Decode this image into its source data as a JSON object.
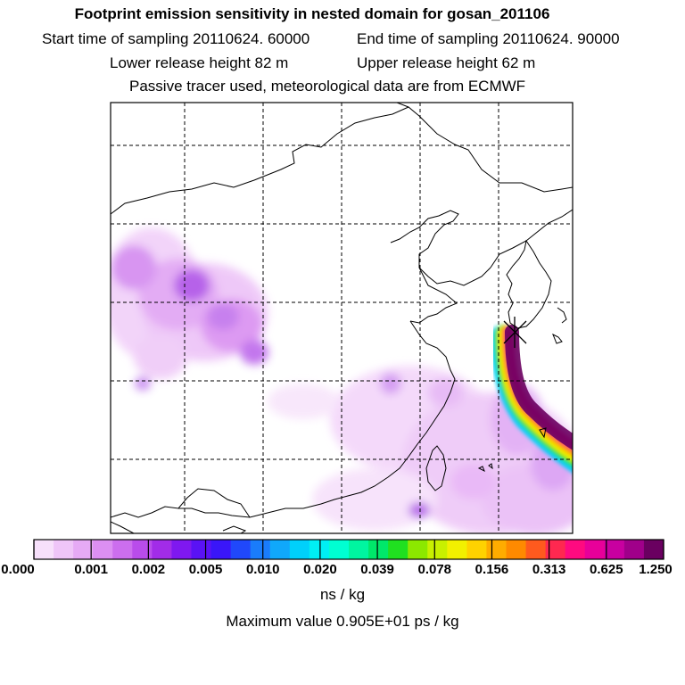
{
  "header": {
    "title": "Footprint emission sensitivity in nested domain for gosan_201106",
    "start_sampling": "Start time of sampling 20110624. 60000",
    "end_sampling": "End time of sampling 20110624. 90000",
    "lower_release": "Lower release height   82 m",
    "upper_release": "Upper release height   62 m",
    "tracer_note": "Passive tracer used, meteorological data are from ECMWF"
  },
  "colorbar": {
    "colors": [
      "#f7e0fb",
      "#efc5f8",
      "#e6aaf5",
      "#dc8ff2",
      "#cc6eee",
      "#b94ceb",
      "#a22ce8",
      "#7f18f0",
      "#5a12f5",
      "#3a16f9",
      "#2048fb",
      "#1a7cfb",
      "#10a8fb",
      "#00d0fb",
      "#00f0f4",
      "#00ffd2",
      "#00f5a0",
      "#00e86a",
      "#20e020",
      "#8ce800",
      "#c8f000",
      "#f2f000",
      "#ffd200",
      "#ffac00",
      "#ff8a00",
      "#ff5a1e",
      "#ff2850",
      "#ff0a80",
      "#e8009a",
      "#c800a0",
      "#a0008a",
      "#6a0060"
    ],
    "ticks": [
      "0.000",
      "0.001",
      "0.002",
      "0.005",
      "0.010",
      "0.020",
      "0.039",
      "0.078",
      "0.156",
      "0.313",
      "0.625",
      "1.250"
    ],
    "unit": "ns / kg"
  },
  "footer": {
    "max_value": "Maximum value  0.905E+01 ps / kg"
  }
}
